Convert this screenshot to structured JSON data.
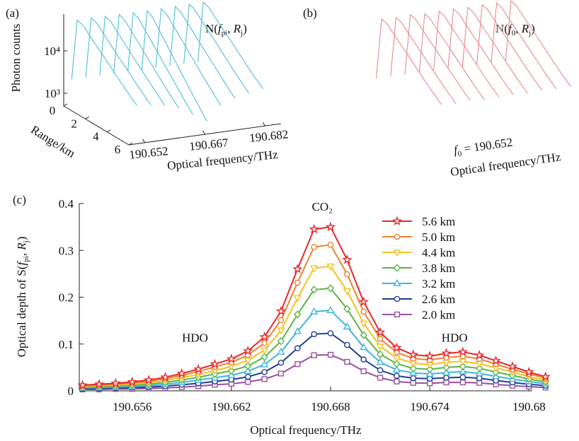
{
  "chart_data": [
    {
      "type": "waterfall3d",
      "panel": "(a)",
      "annotation": [
        "N(",
        "f",
        "pi",
        ", ",
        "R",
        "j",
        ")"
      ],
      "y_label": "Photon counts",
      "x_label": "Range/km",
      "z_label": "Optical frequency/THz",
      "x": [
        0,
        0.5,
        1,
        1.5,
        2,
        3,
        4,
        5,
        6
      ],
      "xlim": [
        0,
        6
      ],
      "xticks": [
        0,
        2,
        4,
        6
      ],
      "ylim": [
        500,
        100000
      ],
      "log_scale": true,
      "yticks": [
        {
          "value": 1000,
          "label": "10³"
        },
        {
          "value": 10000,
          "label": "10⁴"
        }
      ],
      "zlim": [
        190.648,
        190.686
      ],
      "zticks": [
        190.652,
        190.667,
        190.682
      ],
      "color": "#4bbfd9",
      "series": [
        {
          "frequency": 190.65,
          "values": [
            2000,
            60000,
            55000,
            42000,
            32000,
            19000,
            11000,
            6500,
            4000
          ]
        },
        {
          "frequency": 190.6535,
          "values": [
            2000,
            60000,
            55000,
            41000,
            31000,
            18000,
            10500,
            6100,
            3700
          ]
        },
        {
          "frequency": 190.657,
          "values": [
            2000,
            59000,
            54000,
            40000,
            30000,
            17000,
            9600,
            5500,
            3200
          ]
        },
        {
          "frequency": 190.6605,
          "values": [
            2000,
            59000,
            52000,
            38000,
            28000,
            15000,
            8000,
            4400,
            2500
          ]
        },
        {
          "frequency": 190.664,
          "values": [
            2000,
            58000,
            50000,
            35000,
            25000,
            12500,
            6200,
            3100,
            1600
          ]
        },
        {
          "frequency": 190.6675,
          "values": [
            2000,
            58000,
            48000,
            33000,
            22000,
            10000,
            4500,
            2100,
            1000
          ]
        },
        {
          "frequency": 190.671,
          "values": [
            2000,
            59000,
            51000,
            37000,
            27000,
            14000,
            7200,
            3800,
            2100
          ]
        },
        {
          "frequency": 190.6745,
          "values": [
            2000,
            59000,
            53000,
            39000,
            29000,
            16000,
            8800,
            4900,
            2800
          ]
        },
        {
          "frequency": 190.678,
          "values": [
            2000,
            60000,
            54000,
            40000,
            30000,
            17500,
            9800,
            5600,
            3300
          ]
        },
        {
          "frequency": 190.6815,
          "values": [
            2000,
            60000,
            55000,
            41000,
            31000,
            18500,
            10600,
            6200,
            3800
          ]
        }
      ]
    },
    {
      "type": "waterfall3d",
      "panel": "(b)",
      "annotation": [
        "N(",
        "f",
        "0",
        ", ",
        "R",
        "j",
        ")"
      ],
      "f0_label": [
        "f",
        "0",
        " = 190.652"
      ],
      "z_label": "Optical frequency/THz",
      "x": [
        0,
        0.5,
        1,
        1.5,
        2,
        3,
        4,
        5,
        6
      ],
      "xlim": [
        0,
        6
      ],
      "ylim": [
        500,
        100000
      ],
      "log_scale": true,
      "color": "#e88a8b",
      "series": [
        {
          "values": [
            2000,
            60000,
            55000,
            42000,
            32000,
            19000,
            11000,
            6500,
            4000
          ]
        },
        {
          "values": [
            2000,
            58000,
            53000,
            40000,
            30500,
            18000,
            10400,
            6100,
            3800
          ]
        },
        {
          "values": [
            2000,
            61000,
            56000,
            42500,
            32500,
            19200,
            11100,
            6600,
            4000
          ]
        },
        {
          "values": [
            2000,
            57000,
            52000,
            39500,
            30000,
            17800,
            10300,
            6000,
            3700
          ]
        },
        {
          "values": [
            2000,
            59000,
            54000,
            41000,
            31000,
            18500,
            10700,
            6300,
            3900
          ]
        },
        {
          "values": [
            2000,
            60000,
            55000,
            41500,
            31500,
            18800,
            10900,
            6400,
            3950
          ]
        },
        {
          "values": [
            2000,
            58500,
            53500,
            40500,
            30800,
            18200,
            10500,
            6200,
            3800
          ]
        },
        {
          "values": [
            2000,
            60500,
            55500,
            42000,
            32000,
            19000,
            11000,
            6500,
            4000
          ]
        },
        {
          "values": [
            2000,
            59500,
            54500,
            41000,
            31200,
            18600,
            10800,
            6350,
            3900
          ]
        },
        {
          "values": [
            2000,
            60000,
            55000,
            41800,
            31800,
            18900,
            10950,
            6450,
            3980
          ]
        }
      ]
    },
    {
      "type": "line",
      "panel": "(c)",
      "x_label": "Optical frequency/THz",
      "y_label": [
        "Optical depth of S(",
        "f",
        "pi",
        ", ",
        "R",
        "j",
        ")"
      ],
      "annotations": [
        {
          "text": "HDO",
          "x": 190.6598,
          "y": 0.105
        },
        {
          "text": "CO₂",
          "x": 190.6675,
          "y": 0.385
        },
        {
          "text": "HDO",
          "x": 190.6755,
          "y": 0.105
        }
      ],
      "xlim": [
        190.6528,
        190.6802
      ],
      "xticks": [
        190.656,
        190.662,
        190.668,
        190.674,
        190.68
      ],
      "ylim": [
        0,
        0.4
      ],
      "yticks": [
        0,
        0.1,
        0.2,
        0.3,
        0.4
      ],
      "legend": "upper right",
      "x": [
        190.653,
        190.654,
        190.655,
        190.656,
        190.657,
        190.658,
        190.659,
        190.66,
        190.661,
        190.662,
        190.663,
        190.664,
        190.665,
        190.666,
        190.667,
        190.668,
        190.669,
        190.67,
        190.671,
        190.672,
        190.673,
        190.674,
        190.675,
        190.676,
        190.677,
        190.678,
        190.679,
        190.68,
        190.681
      ],
      "series": [
        {
          "name": "5.6 km",
          "color": "#e8262a",
          "marker": "star",
          "values": [
            0.012,
            0.014,
            0.016,
            0.019,
            0.023,
            0.029,
            0.037,
            0.046,
            0.057,
            0.068,
            0.085,
            0.115,
            0.17,
            0.26,
            0.345,
            0.35,
            0.28,
            0.19,
            0.125,
            0.092,
            0.077,
            0.074,
            0.08,
            0.083,
            0.076,
            0.064,
            0.052,
            0.04,
            0.03
          ]
        },
        {
          "name": "5.0 km",
          "color": "#f08030",
          "marker": "circle",
          "values": [
            0.011,
            0.012,
            0.014,
            0.017,
            0.02,
            0.026,
            0.033,
            0.041,
            0.051,
            0.061,
            0.076,
            0.102,
            0.151,
            0.231,
            0.307,
            0.312,
            0.249,
            0.169,
            0.111,
            0.082,
            0.069,
            0.066,
            0.071,
            0.074,
            0.068,
            0.057,
            0.046,
            0.036,
            0.027
          ]
        },
        {
          "name": "4.4 km",
          "color": "#f5c21b",
          "marker": "triangle-down",
          "values": [
            0.009,
            0.011,
            0.012,
            0.014,
            0.017,
            0.022,
            0.028,
            0.035,
            0.043,
            0.052,
            0.065,
            0.087,
            0.129,
            0.198,
            0.262,
            0.266,
            0.213,
            0.144,
            0.095,
            0.07,
            0.059,
            0.056,
            0.061,
            0.063,
            0.058,
            0.049,
            0.04,
            0.03,
            0.023
          ]
        },
        {
          "name": "3.8 km",
          "color": "#5cb447",
          "marker": "diamond",
          "values": [
            0.008,
            0.009,
            0.01,
            0.012,
            0.014,
            0.018,
            0.023,
            0.029,
            0.036,
            0.043,
            0.053,
            0.072,
            0.106,
            0.163,
            0.216,
            0.219,
            0.175,
            0.119,
            0.078,
            0.058,
            0.048,
            0.046,
            0.05,
            0.052,
            0.048,
            0.04,
            0.033,
            0.025,
            0.019
          ]
        },
        {
          "name": "3.2 km",
          "color": "#3fb4e0",
          "marker": "triangle-up",
          "values": [
            0.006,
            0.007,
            0.008,
            0.009,
            0.011,
            0.014,
            0.018,
            0.023,
            0.028,
            0.033,
            0.042,
            0.056,
            0.083,
            0.127,
            0.169,
            0.172,
            0.137,
            0.093,
            0.061,
            0.045,
            0.038,
            0.036,
            0.039,
            0.041,
            0.037,
            0.031,
            0.025,
            0.02,
            0.015
          ]
        },
        {
          "name": "2.6 km",
          "color": "#1f3f99",
          "marker": "circle",
          "values": [
            0.004,
            0.005,
            0.006,
            0.007,
            0.008,
            0.01,
            0.013,
            0.016,
            0.02,
            0.024,
            0.03,
            0.04,
            0.06,
            0.091,
            0.121,
            0.123,
            0.098,
            0.067,
            0.044,
            0.032,
            0.027,
            0.026,
            0.028,
            0.029,
            0.027,
            0.022,
            0.018,
            0.014,
            0.011
          ]
        },
        {
          "name": "2.0 km",
          "color": "#9b4f9f",
          "marker": "square",
          "values": [
            0.003,
            0.003,
            0.004,
            0.004,
            0.005,
            0.006,
            0.008,
            0.01,
            0.013,
            0.015,
            0.019,
            0.025,
            0.037,
            0.057,
            0.076,
            0.077,
            0.062,
            0.042,
            0.028,
            0.02,
            0.017,
            0.016,
            0.018,
            0.018,
            0.017,
            0.014,
            0.011,
            0.009,
            0.007
          ]
        }
      ]
    }
  ]
}
